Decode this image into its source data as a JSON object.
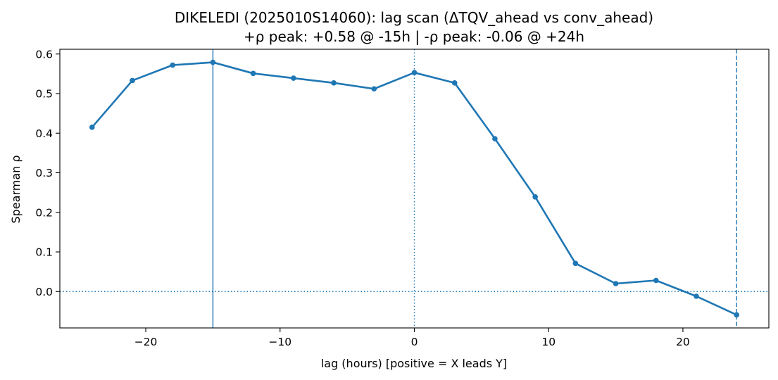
{
  "chart_data": {
    "type": "line",
    "title_line1": "DIKELEDI (2025010S14060): lag scan (ΔTQV_ahead vs conv_ahead)",
    "title_line2": "+ρ peak: +0.58 @ -15h | -ρ peak: -0.06 @ +24h",
    "xlabel": "lag (hours) [positive = X leads Y]",
    "ylabel": "Spearman ρ",
    "xlim": [
      -26.4,
      26.4
    ],
    "ylim": [
      -0.092,
      0.612
    ],
    "xticks": [
      {
        "value": -20,
        "label": "−20"
      },
      {
        "value": -10,
        "label": "−10"
      },
      {
        "value": 0,
        "label": "0"
      },
      {
        "value": 10,
        "label": "10"
      },
      {
        "value": 20,
        "label": "20"
      }
    ],
    "yticks": [
      {
        "value": 0.0,
        "label": "0.0"
      },
      {
        "value": 0.1,
        "label": "0.1"
      },
      {
        "value": 0.2,
        "label": "0.2"
      },
      {
        "value": 0.3,
        "label": "0.3"
      },
      {
        "value": 0.4,
        "label": "0.4"
      },
      {
        "value": 0.5,
        "label": "0.5"
      },
      {
        "value": 0.6,
        "label": "0.6"
      }
    ],
    "grid": false,
    "series": [
      {
        "x": [
          -24,
          -21,
          -18,
          -15,
          -12,
          -9,
          -6,
          -3,
          0,
          3,
          6,
          9,
          12,
          15,
          18,
          21,
          24
        ],
        "values": [
          0.415,
          0.533,
          0.572,
          0.579,
          0.551,
          0.539,
          0.527,
          0.512,
          0.553,
          0.527,
          0.386,
          0.239,
          0.071,
          0.02,
          0.028,
          -0.012,
          -0.059
        ],
        "color": "#1f77b4"
      }
    ],
    "reference_lines": [
      {
        "orientation": "vertical",
        "value": -15,
        "style": "solid",
        "color": "#1f77b4"
      },
      {
        "orientation": "vertical",
        "value": 24,
        "style": "dashed",
        "color": "#1f77b4"
      },
      {
        "orientation": "vertical",
        "value": 0,
        "style": "dotted",
        "color": "#1f77b4"
      },
      {
        "orientation": "horizontal",
        "value": 0,
        "style": "dotted",
        "color": "#1f77b4"
      }
    ]
  }
}
